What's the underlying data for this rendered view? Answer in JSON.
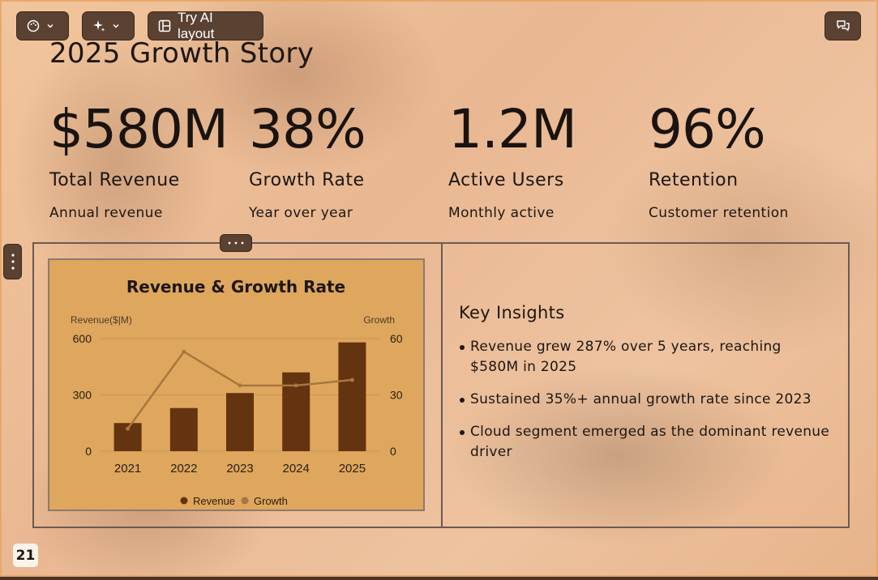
{
  "toolbar": {
    "try_ai_layout_label": "Try AI layout"
  },
  "slide": {
    "title": "2025 Growth Story",
    "stats": [
      {
        "value": "$580M",
        "label": "Total Revenue",
        "desc": "Annual revenue"
      },
      {
        "value": "38%",
        "label": "Growth Rate",
        "desc": "Year over year"
      },
      {
        "value": "1.2M",
        "label": "Active Users",
        "desc": "Monthly active"
      },
      {
        "value": "96%",
        "label": "Retention",
        "desc": "Customer retention"
      }
    ],
    "insights": {
      "heading": "Key Insights",
      "items": [
        "Revenue grew 287% over 5 years, reaching $580M in 2025",
        "Sustained 35%+ annual growth rate since 2023",
        "Cloud segment emerged as the dominant revenue driver"
      ]
    },
    "page_number": "21"
  },
  "colors": {
    "bar": "#64330f",
    "line": "#a9763e",
    "card_bg": "#dea75d"
  },
  "chart_data": {
    "type": "bar",
    "title": "Revenue & Growth Rate",
    "categories": [
      "2021",
      "2022",
      "2023",
      "2024",
      "2025"
    ],
    "ylabel": "Revenue($|M)",
    "y2label": "Growth",
    "ylim": [
      0,
      600
    ],
    "y2lim": [
      0,
      60
    ],
    "yticks": [
      "600",
      "300",
      "0"
    ],
    "y2ticks": [
      "60",
      "30",
      "0"
    ],
    "series": [
      {
        "name": "Revenue",
        "type": "bar",
        "axis": "left",
        "values": [
          150,
          230,
          310,
          420,
          580
        ]
      },
      {
        "name": "Growth",
        "type": "line",
        "axis": "right",
        "values": [
          12,
          53,
          35,
          35,
          38
        ]
      }
    ],
    "legend": "bottom",
    "grid": true
  }
}
